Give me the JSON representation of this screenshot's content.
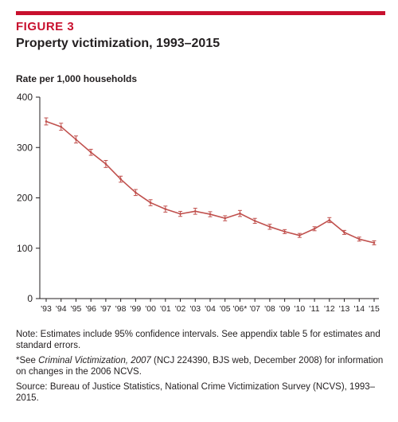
{
  "figure": {
    "label": "FIGURE 3",
    "title": "Property victimization, 1993–2015"
  },
  "notes": {
    "note": "Note: Estimates include 95% confidence intervals. See appendix table 5 for estimates and standard errors.",
    "see_prefix": "*See ",
    "see_italic": "Criminal Victimization, 2007",
    "see_rest": " (NCJ 224390, BJS web, December 2008) for information on changes in the 2006 NCVS.",
    "source": "Source: Bureau of Justice Statistics, National Crime Victimization Survey (NCVS), 1993–2015."
  },
  "colors": {
    "accent": "#c8102e",
    "line": "#c0504d",
    "axis": "#231f20",
    "grid": "#d9d9d9"
  },
  "chart_data": {
    "type": "line",
    "title": "Property victimization, 1993–2015",
    "ylabel": "Rate per 1,000 households",
    "xlabel": "",
    "ylim": [
      0,
      400
    ],
    "yticks": [
      0,
      100,
      200,
      300,
      400
    ],
    "grid": false,
    "categories": [
      "'93",
      "'94",
      "'95",
      "'96",
      "'97",
      "'98",
      "'99",
      "'00",
      "'01",
      "'02",
      "'03",
      "'04",
      "'05",
      "'06*",
      "'07",
      "'08",
      "'09",
      "'10",
      "'11",
      "'12",
      "'13",
      "'14",
      "'15"
    ],
    "series": [
      {
        "values": [
          351.8,
          341.2,
          315.9,
          290.5,
          267.3,
          237.1,
          210.6,
          190.4,
          177.7,
          168.2,
          173.4,
          167.5,
          159.5,
          169.0,
          154.3,
          142.6,
          133.0,
          125.4,
          138.7,
          155.8,
          131.4,
          118.1,
          110.7
        ],
        "ci": [
          7,
          7,
          7,
          6,
          7,
          6,
          6,
          6,
          6,
          5,
          6,
          5,
          5,
          6,
          5,
          5,
          4,
          4,
          4,
          5,
          4,
          4,
          4
        ]
      }
    ]
  }
}
